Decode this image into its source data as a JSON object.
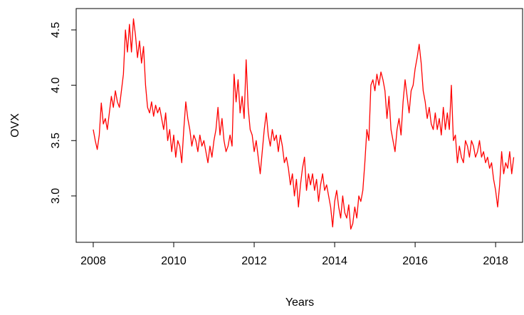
{
  "chart_data": {
    "type": "line",
    "xlabel": "Years",
    "ylabel": "OVX",
    "xlim": [
      2007.576,
      2018.67
    ],
    "ylim": [
      2.581,
      4.693
    ],
    "xticks": [
      2008,
      2010,
      2012,
      2014,
      2016,
      2018
    ],
    "yticks": [
      {
        "value": 3.0,
        "label": "3.0"
      },
      3.5,
      {
        "value": 4.0,
        "label": "4.0"
      },
      4.5
    ],
    "grid": false,
    "series": [
      {
        "color": "#ff0000",
        "x": [
          2008,
          2008.05,
          2008.1,
          2008.15,
          2008.2,
          2008.25,
          2008.3,
          2008.35,
          2008.4,
          2008.45,
          2008.5,
          2008.55,
          2008.6,
          2008.65,
          2008.7,
          2008.75,
          2008.8,
          2008.85,
          2008.9,
          2008.95,
          2009,
          2009.05,
          2009.1,
          2009.15,
          2009.2,
          2009.25,
          2009.3,
          2009.35,
          2009.4,
          2009.45,
          2009.5,
          2009.55,
          2009.6,
          2009.65,
          2009.7,
          2009.75,
          2009.8,
          2009.85,
          2009.9,
          2009.95,
          2010,
          2010.05,
          2010.1,
          2010.15,
          2010.2,
          2010.25,
          2010.3,
          2010.35,
          2010.4,
          2010.45,
          2010.5,
          2010.55,
          2010.6,
          2010.65,
          2010.7,
          2010.75,
          2010.8,
          2010.85,
          2010.9,
          2010.95,
          2011,
          2011.05,
          2011.1,
          2011.15,
          2011.2,
          2011.25,
          2011.3,
          2011.35,
          2011.4,
          2011.45,
          2011.5,
          2011.55,
          2011.6,
          2011.65,
          2011.7,
          2011.75,
          2011.8,
          2011.85,
          2011.9,
          2011.95,
          2012,
          2012.05,
          2012.1,
          2012.15,
          2012.2,
          2012.25,
          2012.3,
          2012.35,
          2012.4,
          2012.45,
          2012.5,
          2012.55,
          2012.6,
          2012.65,
          2012.7,
          2012.75,
          2012.8,
          2012.85,
          2012.9,
          2012.95,
          2013,
          2013.05,
          2013.1,
          2013.15,
          2013.2,
          2013.25,
          2013.3,
          2013.35,
          2013.4,
          2013.45,
          2013.5,
          2013.55,
          2013.6,
          2013.65,
          2013.7,
          2013.75,
          2013.8,
          2013.85,
          2013.9,
          2013.95,
          2014,
          2014.05,
          2014.1,
          2014.15,
          2014.2,
          2014.25,
          2014.3,
          2014.35,
          2014.4,
          2014.45,
          2014.5,
          2014.55,
          2014.6,
          2014.65,
          2014.7,
          2014.75,
          2014.8,
          2014.85,
          2014.9,
          2014.95,
          2015,
          2015.05,
          2015.1,
          2015.15,
          2015.2,
          2015.25,
          2015.3,
          2015.35,
          2015.4,
          2015.45,
          2015.5,
          2015.55,
          2015.6,
          2015.65,
          2015.7,
          2015.75,
          2015.8,
          2015.85,
          2015.9,
          2015.95,
          2016,
          2016.05,
          2016.1,
          2016.15,
          2016.2,
          2016.25,
          2016.3,
          2016.35,
          2016.4,
          2016.45,
          2016.5,
          2016.55,
          2016.6,
          2016.65,
          2016.7,
          2016.75,
          2016.8,
          2016.85,
          2016.9,
          2016.95,
          2017,
          2017.05,
          2017.1,
          2017.15,
          2017.2,
          2017.25,
          2017.3,
          2017.35,
          2017.4,
          2017.45,
          2017.5,
          2017.55,
          2017.6,
          2017.65,
          2017.7,
          2017.75,
          2017.8,
          2017.85,
          2017.9,
          2017.95,
          2018,
          2018.05,
          2018.1,
          2018.15,
          2018.2,
          2018.25,
          2018.3,
          2018.35,
          2018.4,
          2018.45
        ],
        "values": [
          3.6,
          3.5,
          3.42,
          3.55,
          3.84,
          3.65,
          3.7,
          3.6,
          3.75,
          3.9,
          3.8,
          3.95,
          3.85,
          3.8,
          3.95,
          4.1,
          4.5,
          4.3,
          4.55,
          4.3,
          4.6,
          4.45,
          4.25,
          4.4,
          4.2,
          4.35,
          4.0,
          3.8,
          3.75,
          3.85,
          3.72,
          3.82,
          3.75,
          3.8,
          3.7,
          3.6,
          3.75,
          3.5,
          3.6,
          3.4,
          3.55,
          3.35,
          3.5,
          3.45,
          3.3,
          3.6,
          3.85,
          3.7,
          3.6,
          3.45,
          3.55,
          3.5,
          3.4,
          3.55,
          3.45,
          3.5,
          3.4,
          3.3,
          3.45,
          3.35,
          3.5,
          3.6,
          3.8,
          3.55,
          3.7,
          3.5,
          3.4,
          3.45,
          3.55,
          3.45,
          4.1,
          3.85,
          4.05,
          3.75,
          3.9,
          3.7,
          4.23,
          3.8,
          3.6,
          3.55,
          3.4,
          3.5,
          3.35,
          3.2,
          3.4,
          3.6,
          3.75,
          3.55,
          3.45,
          3.6,
          3.5,
          3.55,
          3.4,
          3.55,
          3.45,
          3.3,
          3.35,
          3.25,
          3.1,
          3.2,
          3.0,
          3.15,
          2.9,
          3.1,
          3.25,
          3.35,
          3.05,
          3.2,
          3.1,
          3.2,
          3.05,
          3.15,
          2.95,
          3.1,
          3.2,
          3.05,
          3.1,
          3.0,
          2.9,
          2.72,
          2.95,
          3.05,
          2.9,
          2.8,
          3.0,
          2.85,
          2.8,
          2.92,
          2.7,
          2.75,
          2.9,
          2.8,
          3.0,
          2.95,
          3.05,
          3.3,
          3.6,
          3.5,
          4.0,
          4.05,
          3.95,
          4.1,
          4.0,
          4.12,
          4.05,
          3.95,
          3.7,
          3.9,
          3.6,
          3.5,
          3.4,
          3.6,
          3.7,
          3.55,
          3.85,
          4.05,
          3.9,
          3.75,
          3.95,
          4.0,
          4.15,
          4.25,
          4.37,
          4.2,
          3.95,
          3.85,
          3.7,
          3.8,
          3.65,
          3.6,
          3.75,
          3.6,
          3.7,
          3.55,
          3.8,
          3.6,
          3.75,
          3.6,
          4.0,
          3.5,
          3.55,
          3.3,
          3.45,
          3.35,
          3.3,
          3.5,
          3.45,
          3.35,
          3.5,
          3.45,
          3.35,
          3.4,
          3.5,
          3.35,
          3.4,
          3.3,
          3.35,
          3.25,
          3.3,
          3.15,
          3.05,
          2.9,
          3.1,
          3.4,
          3.2,
          3.3,
          3.25,
          3.4,
          3.2,
          3.35
        ]
      }
    ]
  }
}
